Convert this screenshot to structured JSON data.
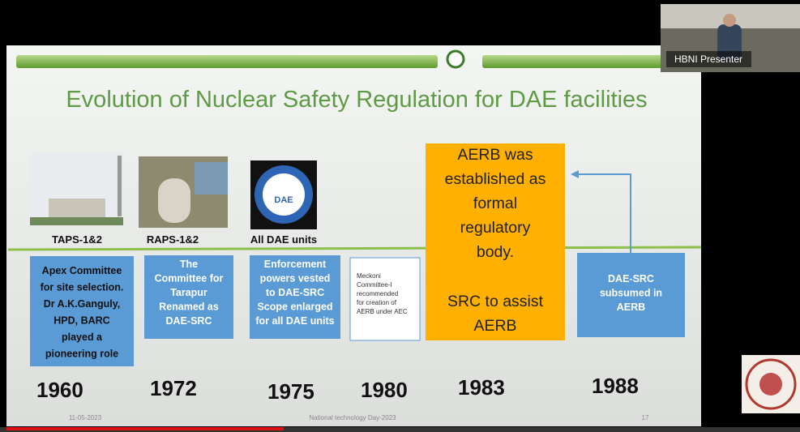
{
  "presenter": "HBNI Presenter",
  "slide": {
    "title": "Evolution of Nuclear Safety Regulation for DAE facilities",
    "footer": {
      "date": "11-05-2023",
      "event": "National technology Day-2023",
      "page": "17"
    },
    "columns": [
      {
        "label": "TAPS-1&2",
        "box": [
          "Apex Committee",
          "for site selection.",
          "Dr A.K.Ganguly,",
          "HPD, BARC",
          "played a",
          "pioneering role"
        ],
        "year": "1960"
      },
      {
        "label": "RAPS-1&2",
        "box": [
          "The",
          "Committee for",
          "Tarapur",
          "Renamed as",
          "DAE-SRC"
        ],
        "year": "1972"
      },
      {
        "label": "All DAE units",
        "box": [
          "Enforcement",
          "powers vested",
          "to DAE-SRC",
          "Scope enlarged",
          "for all DAE units"
        ],
        "year": "1975"
      },
      {
        "box": [
          "Meckoni",
          "Committee-I",
          "recommended",
          "for creation of",
          "AERB under AEC"
        ],
        "year": "1980"
      },
      {
        "box": [
          "AERB was",
          "established as",
          "formal",
          "regulatory",
          "body."
        ],
        "box2": [
          "SRC to assist",
          "AERB"
        ],
        "year": "1983"
      },
      {
        "box": [
          "DAE-SRC",
          "subsumed in",
          "AERB"
        ],
        "year": "1988"
      }
    ],
    "logo_text": "DAE"
  }
}
